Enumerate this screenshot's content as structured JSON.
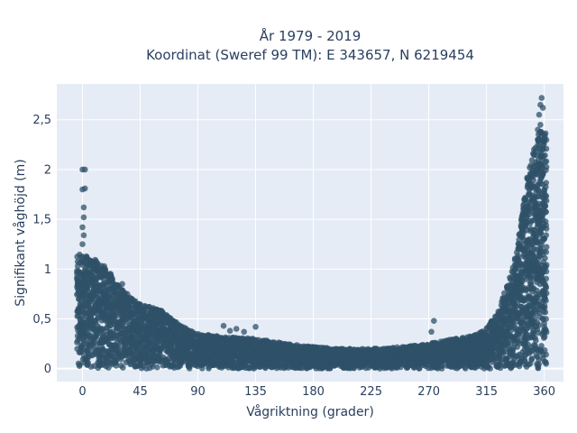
{
  "chart_data": {
    "type": "scatter",
    "title_line1": "År 1979 - 2019",
    "title_line2": "Koordinat (Sweref 99 TM): E 343657, N 6219454",
    "xlabel": "Vågriktning (grader)",
    "ylabel": "Signifikant våghöjd (m)",
    "xlim": [
      -20,
      375
    ],
    "ylim": [
      -0.13,
      2.86
    ],
    "xticks": [
      0,
      45,
      90,
      135,
      180,
      225,
      270,
      315,
      360
    ],
    "xtick_labels": [
      "0",
      "45",
      "90",
      "135",
      "180",
      "225",
      "270",
      "315",
      "360"
    ],
    "yticks": [
      0,
      0.5,
      1,
      1.5,
      2,
      2.5
    ],
    "ytick_labels": [
      "0",
      "0,5",
      "1",
      "1,5",
      "2",
      "2,5"
    ],
    "grid": true,
    "legend": "none",
    "marker_color": "#2f5168",
    "plot_background": "#e5ecf6",
    "envelope": {
      "direction": [
        0,
        10,
        20,
        30,
        45,
        60,
        75,
        90,
        110,
        135,
        160,
        180,
        200,
        225,
        250,
        270,
        290,
        305,
        315,
        325,
        335,
        340,
        345,
        350,
        355,
        358
      ],
      "max_height": [
        1.15,
        1.1,
        1.0,
        0.8,
        0.65,
        0.6,
        0.45,
        0.35,
        0.32,
        0.3,
        0.25,
        0.22,
        0.2,
        0.2,
        0.22,
        0.25,
        0.3,
        0.33,
        0.4,
        0.6,
        1.0,
        1.3,
        1.8,
        2.1,
        2.35,
        2.4
      ]
    },
    "outliers": [
      {
        "x": 0,
        "y": 2.0
      },
      {
        "x": 2,
        "y": 2.0
      },
      {
        "x": 0,
        "y": 1.8
      },
      {
        "x": 2,
        "y": 1.81
      },
      {
        "x": 1,
        "y": 1.62
      },
      {
        "x": 1,
        "y": 1.52
      },
      {
        "x": 0,
        "y": 1.42
      },
      {
        "x": 1,
        "y": 1.34
      },
      {
        "x": 0,
        "y": 1.25
      },
      {
        "x": 12,
        "y": 1.05
      },
      {
        "x": 17,
        "y": 1.0
      },
      {
        "x": 22,
        "y": 0.95
      },
      {
        "x": 31,
        "y": 0.85
      },
      {
        "x": 35,
        "y": 0.75
      },
      {
        "x": 40,
        "y": 0.68
      },
      {
        "x": 52,
        "y": 0.62
      },
      {
        "x": 110,
        "y": 0.43
      },
      {
        "x": 115,
        "y": 0.38
      },
      {
        "x": 120,
        "y": 0.4
      },
      {
        "x": 126,
        "y": 0.37
      },
      {
        "x": 135,
        "y": 0.42
      },
      {
        "x": 274,
        "y": 0.48
      },
      {
        "x": 272,
        "y": 0.37
      },
      {
        "x": 340,
        "y": 1.25
      },
      {
        "x": 344,
        "y": 1.6
      },
      {
        "x": 348,
        "y": 1.9
      },
      {
        "x": 352,
        "y": 2.2
      },
      {
        "x": 355,
        "y": 2.4
      },
      {
        "x": 356,
        "y": 2.55
      },
      {
        "x": 357,
        "y": 2.65
      },
      {
        "x": 358,
        "y": 2.72
      },
      {
        "x": 357,
        "y": 2.45
      },
      {
        "x": 359,
        "y": 2.62
      }
    ]
  }
}
